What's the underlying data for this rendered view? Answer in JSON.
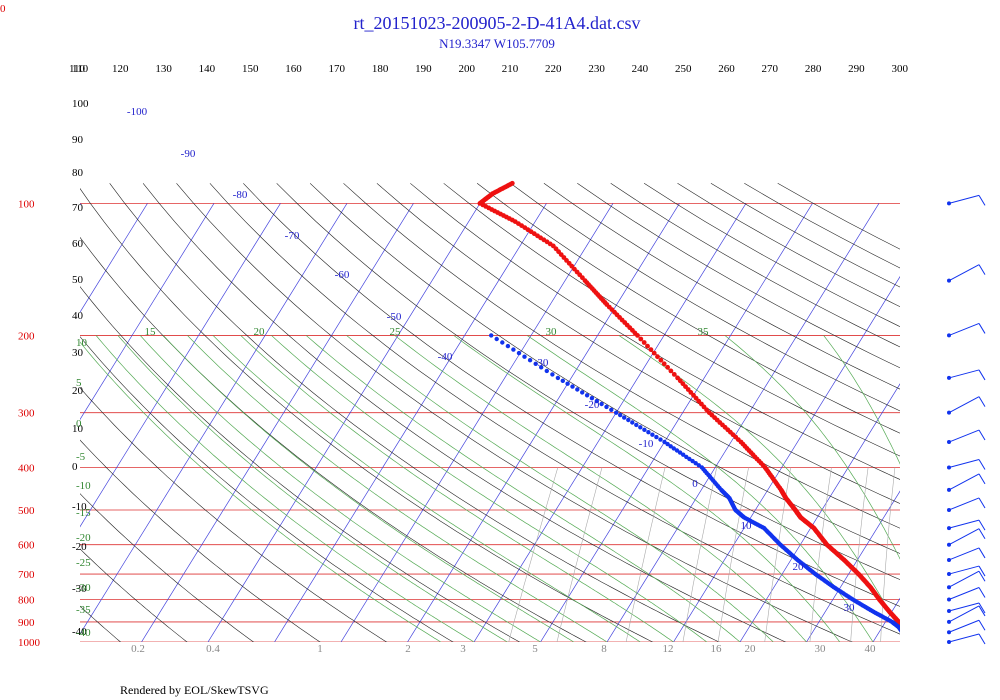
{
  "header": {
    "title": "rt_20151023-200905-2-D-41A4.dat.csv",
    "subtitle": "N19.3347 W105.7709",
    "corner_label": "0"
  },
  "footer": {
    "credit": "Rendered by EOL/SkewTSVG"
  },
  "chart_data": {
    "type": "skew-t",
    "top_axis": {
      "label_values": [
        "110",
        "120",
        "130",
        "140",
        "150",
        "160",
        "170",
        "180",
        "190",
        "200",
        "210",
        "220",
        "230",
        "240",
        "250",
        "260",
        "270",
        "280",
        "290",
        "300"
      ]
    },
    "pressure_axis": {
      "range_hpa": [
        1000,
        100
      ],
      "labels": [
        "100",
        "200",
        "300",
        "400",
        "500",
        "600",
        "700",
        "800",
        "900",
        "1000"
      ]
    },
    "isotherm_labels": [
      "-100",
      "-90",
      "-80",
      "-70",
      "-60",
      "-50",
      "-40",
      "-30",
      "-20",
      "-10",
      "0",
      "10",
      "20",
      "30"
    ],
    "left_numbers": [
      "110",
      "100",
      "90",
      "80",
      "70",
      "60",
      "50",
      "40",
      "30",
      "20",
      "10",
      "0",
      "-10",
      "-20",
      "-30",
      "-40"
    ],
    "mixing_ratio_labels": [
      "0.2",
      "0.4",
      "1",
      "2",
      "3",
      "5",
      "8",
      "12",
      "16",
      "20",
      "30",
      "40"
    ],
    "wet_adiabat_labels_top": [
      "15",
      "20",
      "25",
      "30",
      "35"
    ],
    "wet_adiabat_labels_left": [
      "10",
      "5",
      "0",
      "-5",
      "-10",
      "-15",
      "-20",
      "-25",
      "-30",
      "-35",
      "-40"
    ],
    "temperature_profile_c": [
      [
        1000,
        30.5
      ],
      [
        975,
        28
      ],
      [
        950,
        25.5
      ],
      [
        925,
        24
      ],
      [
        900,
        22
      ],
      [
        850,
        19.5
      ],
      [
        800,
        17
      ],
      [
        750,
        14.5
      ],
      [
        700,
        11.5
      ],
      [
        650,
        8
      ],
      [
        600,
        4
      ],
      [
        550,
        0.5
      ],
      [
        520,
        -2.5
      ],
      [
        500,
        -4
      ],
      [
        470,
        -6.5
      ],
      [
        450,
        -8
      ],
      [
        400,
        -12.5
      ],
      [
        350,
        -18.5
      ],
      [
        300,
        -26
      ],
      [
        250,
        -34
      ],
      [
        200,
        -44
      ],
      [
        170,
        -51.5
      ],
      [
        150,
        -57
      ],
      [
        125,
        -65
      ],
      [
        110,
        -73
      ],
      [
        100,
        -80
      ],
      [
        95,
        -79
      ],
      [
        90,
        -77
      ]
    ],
    "dewpoint_profile_c": [
      [
        1000,
        27
      ],
      [
        975,
        25
      ],
      [
        950,
        23.5
      ],
      [
        925,
        22.5
      ],
      [
        900,
        21
      ],
      [
        850,
        17
      ],
      [
        800,
        13
      ],
      [
        750,
        9
      ],
      [
        700,
        5
      ],
      [
        650,
        1
      ],
      [
        600,
        -3
      ],
      [
        550,
        -7
      ],
      [
        520,
        -11
      ],
      [
        500,
        -13
      ],
      [
        470,
        -15
      ],
      [
        450,
        -17
      ],
      [
        400,
        -22
      ],
      [
        350,
        -30
      ],
      [
        300,
        -40
      ],
      [
        250,
        -52
      ],
      [
        200,
        -66
      ]
    ],
    "wind_barbs_hpa": [
      1000,
      950,
      900,
      850,
      800,
      750,
      700,
      650,
      600,
      550,
      500,
      450,
      400,
      350,
      300,
      250,
      200,
      150,
      100
    ]
  }
}
